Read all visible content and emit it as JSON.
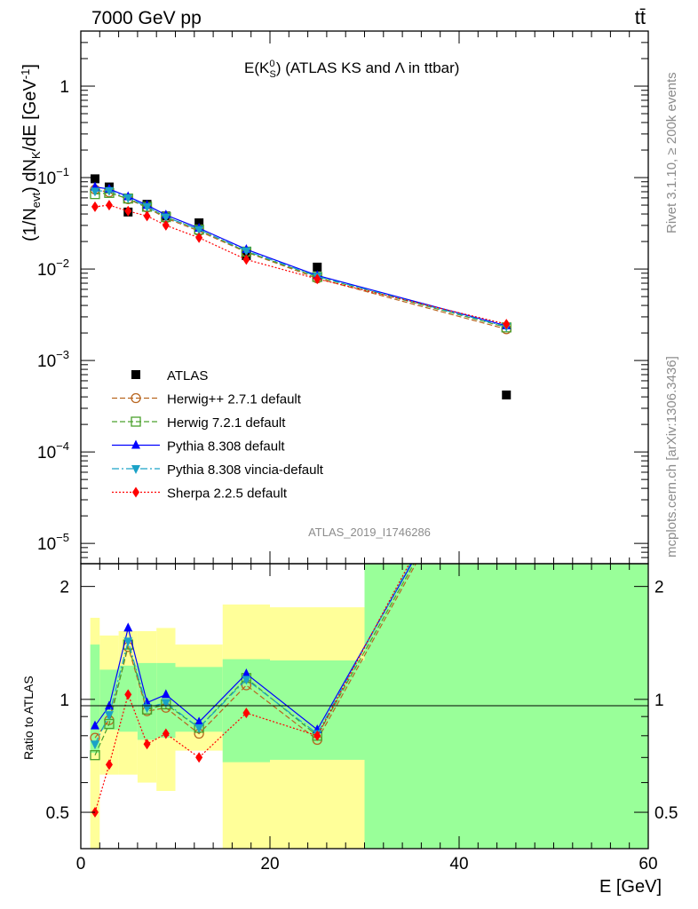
{
  "header": {
    "left": "7000 GeV pp",
    "right": "tt̄"
  },
  "side_text": {
    "rivet": "Rivet 3.1.10, ≥ 200k events",
    "mcplots": "mcplots.cern.ch [arXiv:1306.3436]"
  },
  "chart_data": {
    "type": "scatter",
    "title": "E(K⁰S) (ATLAS KS and Λ in ttbar)",
    "analysis_label": "ATLAS_2019_I1746286",
    "xlabel": "E [GeV]",
    "ylabel_top": "(1/Nevt) dNK/dE [GeV⁻¹]",
    "ylabel_bottom": "Ratio to ATLAS",
    "xlim": [
      0,
      60
    ],
    "ylim_top": [
      6e-06,
      4
    ],
    "ylim_top_scale": "log",
    "ylim_bottom": [
      0.4,
      2.3
    ],
    "ylim_bottom_scale": "log",
    "x_ticks": [
      "0",
      "20",
      "40",
      "60"
    ],
    "y_ticks_top": [
      "1",
      "10⁻¹",
      "10⁻²",
      "10⁻³",
      "10⁻⁴",
      "10⁻⁵"
    ],
    "y_ticks_bottom": [
      "2",
      "1",
      "0.5"
    ],
    "legend_position": "lower-left",
    "x": [
      1.5,
      3,
      5,
      7,
      9,
      12.5,
      17.5,
      25,
      45
    ],
    "bins": [
      [
        1,
        2
      ],
      [
        2,
        4
      ],
      [
        4,
        6
      ],
      [
        6,
        8
      ],
      [
        8,
        10
      ],
      [
        10,
        15
      ],
      [
        15,
        20
      ],
      [
        20,
        30
      ],
      [
        30,
        60
      ]
    ],
    "band_inner": [
      [
        0.72,
        1.4
      ],
      [
        0.83,
        1.2
      ],
      [
        0.82,
        1.23
      ],
      [
        0.78,
        1.25
      ],
      [
        0.79,
        1.25
      ],
      [
        0.82,
        1.22
      ],
      [
        0.68,
        1.28
      ],
      [
        0.69,
        1.27
      ],
      [
        0.38,
        3.0
      ]
    ],
    "band_outer": [
      [
        0.36,
        1.65
      ],
      [
        0.63,
        1.48
      ],
      [
        0.63,
        1.52
      ],
      [
        0.6,
        1.52
      ],
      [
        0.57,
        1.55
      ],
      [
        0.73,
        1.4
      ],
      [
        0.36,
        1.79
      ],
      [
        0.38,
        1.76
      ],
      [
        0.38,
        3.0
      ]
    ],
    "series": [
      {
        "name": "ATLAS",
        "color": "#000000",
        "marker": "square",
        "values": [
          0.097,
          0.079,
          0.042,
          0.051,
          0.038,
          0.032,
          0.014,
          0.0105,
          0.00042
        ]
      },
      {
        "name": "Herwig++ 2.7.1 default",
        "color": "#b8651f",
        "marker": "circle-open",
        "dash": "6,3",
        "values": [
          0.074,
          0.069,
          0.058,
          0.047,
          0.036,
          0.026,
          0.0153,
          0.0079,
          0.0022
        ]
      },
      {
        "name": "Herwig 7.2.1 default",
        "color": "#4aa02c",
        "marker": "square-open",
        "dash": "6,3",
        "values": [
          0.066,
          0.068,
          0.059,
          0.048,
          0.037,
          0.027,
          0.0155,
          0.0082,
          0.0023
        ]
      },
      {
        "name": "Pythia 8.308 default",
        "color": "#0000ff",
        "marker": "triangle-up",
        "dash": "",
        "values": [
          0.079,
          0.075,
          0.062,
          0.05,
          0.039,
          0.028,
          0.0164,
          0.0085,
          0.0024
        ]
      },
      {
        "name": "Pythia 8.308 vincia-default",
        "color": "#1ba2c7",
        "marker": "triangle-down",
        "dash": "8,3,2,3",
        "values": [
          0.071,
          0.072,
          0.06,
          0.048,
          0.037,
          0.027,
          0.0158,
          0.0083,
          0.00235
        ]
      },
      {
        "name": "Sherpa 2.2.5 default",
        "color": "#ff0000",
        "marker": "diamond",
        "dash": "2,2",
        "values": [
          0.048,
          0.05,
          0.043,
          0.038,
          0.03,
          0.022,
          0.0127,
          0.0078,
          0.0025
        ]
      }
    ],
    "ratios": [
      {
        "name": "Herwig++ 2.7.1 default",
        "values": [
          0.79,
          0.88,
          1.38,
          0.93,
          0.95,
          0.81,
          1.09,
          0.78
        ]
      },
      {
        "name": "Herwig 7.2.1 default",
        "values": [
          0.71,
          0.86,
          1.4,
          0.94,
          0.97,
          0.84,
          1.14,
          0.8
        ]
      },
      {
        "name": "Pythia 8.308 default",
        "values": [
          0.85,
          0.96,
          1.55,
          0.98,
          1.03,
          0.87,
          1.17,
          0.83
        ]
      },
      {
        "name": "Pythia 8.308 vincia-default",
        "values": [
          0.76,
          0.91,
          1.43,
          0.95,
          0.98,
          0.84,
          1.13,
          0.81
        ]
      },
      {
        "name": "Sherpa 2.2.5 default",
        "values": [
          0.5,
          0.67,
          1.03,
          0.76,
          0.81,
          0.7,
          0.92,
          0.8
        ]
      }
    ],
    "ratio_last_bin_to": [
      [
        0.78,
        3.0
      ],
      [
        0.8,
        3.0
      ],
      [
        0.83,
        3.0
      ],
      [
        0.81,
        3.0
      ],
      [
        0.8,
        3.0
      ]
    ]
  }
}
